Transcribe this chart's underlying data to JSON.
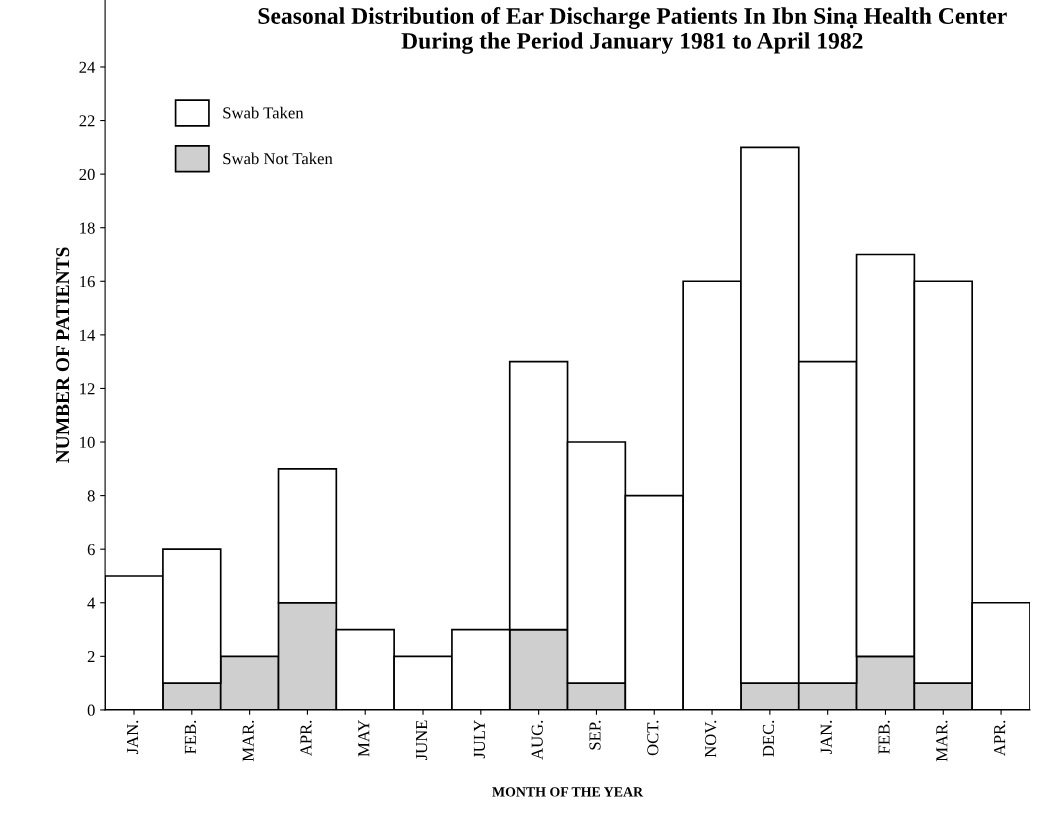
{
  "chart_data": {
    "type": "bar",
    "stacked": true,
    "title": "Seasonal Distribution of Ear Discharge Patients In Ibn Sinạ Health Center\nDuring the Period January 1981 to April 1982",
    "xlabel": "MONTH OF THE YEAR",
    "ylabel": "NUMBER OF PATIENTS",
    "categories": [
      "JAN.",
      "FEB.",
      "MAR.",
      "APR.",
      "MAY",
      "JUNE",
      "JULY",
      "AUG.",
      "SEP.",
      "OCT.",
      "NOV.",
      "DEC.",
      "JAN.",
      "FEB.",
      "MAR.",
      "APR."
    ],
    "series": [
      {
        "name": "Swab Not Taken",
        "color": "#cfcfcf",
        "values": [
          0,
          1,
          2,
          4,
          0,
          0,
          0,
          3,
          1,
          0,
          0,
          1,
          1,
          2,
          1,
          0
        ]
      },
      {
        "name": "Swab Taken",
        "color": "#ffffff",
        "values": [
          5,
          5,
          0,
          5,
          3,
          2,
          3,
          10,
          9,
          8,
          16,
          20,
          12,
          15,
          15,
          4
        ]
      }
    ],
    "ylim": [
      0,
      26.5
    ],
    "yticks": [
      0,
      2,
      4,
      6,
      8,
      10,
      12,
      14,
      16,
      18,
      20,
      22,
      24
    ],
    "grid": false,
    "legend": "top left"
  }
}
